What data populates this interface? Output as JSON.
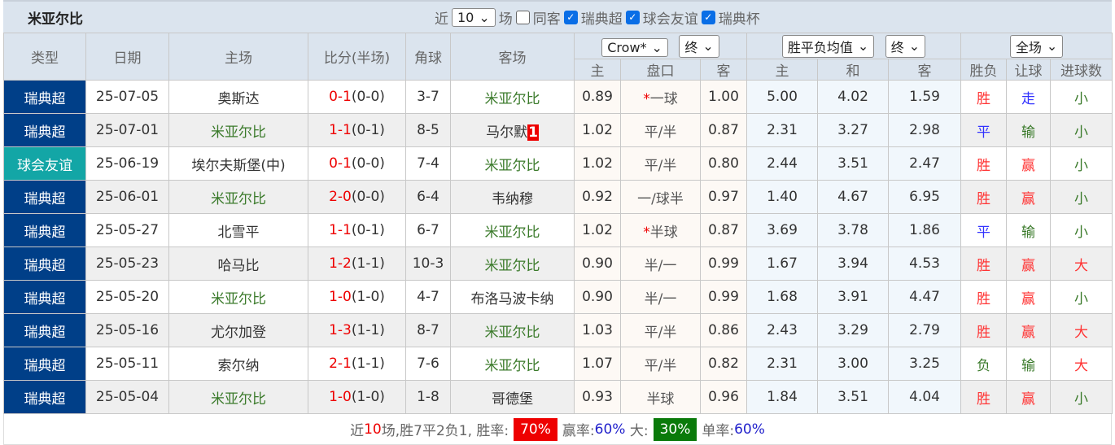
{
  "title": "米亚尔比",
  "filters": {
    "recent_label": "近",
    "count": "10",
    "unit": "场",
    "same_home_away": "同客",
    "leagues": [
      "瑞典超",
      "球会友谊",
      "瑞典杯"
    ]
  },
  "header": {
    "type": "类型",
    "date": "日期",
    "home": "主场",
    "score": "比分(半场)",
    "corner": "角球",
    "away": "客场",
    "ah_company": "Crow*",
    "ah_stage": "终",
    "eu_type": "胜平负均值",
    "eu_stage": "终",
    "scope": "全场",
    "ah_home": "主",
    "ah_line": "盘口",
    "ah_away": "客",
    "eu_home": "主",
    "eu_draw": "和",
    "eu_away": "客",
    "res": "胜负",
    "handicap": "让球",
    "goals": "进球数"
  },
  "rows": [
    {
      "type": "瑞典超",
      "date": "25-07-05",
      "home": "奥斯达",
      "ft": "0-1",
      "ht": "(0-0)",
      "corner": "3-7",
      "away": "米亚尔比",
      "away_badge": "",
      "ah_h": "0.89",
      "ah_star": "*",
      "ah_line": "一球",
      "ah_a": "1.00",
      "eu_h": "5.00",
      "eu_d": "4.02",
      "eu_a": "1.59",
      "res": "胜",
      "hc": "走",
      "goals": "小"
    },
    {
      "type": "瑞典超",
      "date": "25-07-01",
      "home": "米亚尔比",
      "ft": "1-1",
      "ht": "(0-1)",
      "corner": "8-5",
      "away": "马尔默",
      "away_badge": "1",
      "ah_h": "1.02",
      "ah_star": "",
      "ah_line": "平/半",
      "ah_a": "0.87",
      "eu_h": "2.31",
      "eu_d": "3.27",
      "eu_a": "2.98",
      "res": "平",
      "hc": "输",
      "goals": "小"
    },
    {
      "type": "球会友谊",
      "date": "25-06-19",
      "home": "埃尔夫斯堡(中)",
      "ft": "0-1",
      "ht": "(0-0)",
      "corner": "7-4",
      "away": "米亚尔比",
      "away_badge": "",
      "ah_h": "1.02",
      "ah_star": "",
      "ah_line": "平/半",
      "ah_a": "0.80",
      "eu_h": "2.44",
      "eu_d": "3.51",
      "eu_a": "2.47",
      "res": "胜",
      "hc": "赢",
      "goals": "小"
    },
    {
      "type": "瑞典超",
      "date": "25-06-01",
      "home": "米亚尔比",
      "ft": "2-0",
      "ht": "(0-0)",
      "corner": "6-4",
      "away": "韦纳穆",
      "away_badge": "",
      "ah_h": "0.92",
      "ah_star": "",
      "ah_line": "一/球半",
      "ah_a": "0.97",
      "eu_h": "1.40",
      "eu_d": "4.67",
      "eu_a": "6.95",
      "res": "胜",
      "hc": "赢",
      "goals": "小"
    },
    {
      "type": "瑞典超",
      "date": "25-05-27",
      "home": "北雪平",
      "ft": "1-1",
      "ht": "(0-1)",
      "corner": "6-7",
      "away": "米亚尔比",
      "away_badge": "",
      "ah_h": "1.02",
      "ah_star": "*",
      "ah_line": "半球",
      "ah_a": "0.87",
      "eu_h": "3.69",
      "eu_d": "3.78",
      "eu_a": "1.86",
      "res": "平",
      "hc": "输",
      "goals": "小"
    },
    {
      "type": "瑞典超",
      "date": "25-05-23",
      "home": "哈马比",
      "ft": "1-2",
      "ht": "(1-1)",
      "corner": "10-3",
      "away": "米亚尔比",
      "away_badge": "",
      "ah_h": "0.90",
      "ah_star": "",
      "ah_line": "半/一",
      "ah_a": "0.99",
      "eu_h": "1.67",
      "eu_d": "3.94",
      "eu_a": "4.53",
      "res": "胜",
      "hc": "赢",
      "goals": "大"
    },
    {
      "type": "瑞典超",
      "date": "25-05-20",
      "home": "米亚尔比",
      "ft": "1-0",
      "ht": "(1-0)",
      "corner": "4-7",
      "away": "布洛马波卡纳",
      "away_badge": "",
      "ah_h": "0.90",
      "ah_star": "",
      "ah_line": "半/一",
      "ah_a": "0.99",
      "eu_h": "1.68",
      "eu_d": "3.91",
      "eu_a": "4.47",
      "res": "胜",
      "hc": "赢",
      "goals": "小"
    },
    {
      "type": "瑞典超",
      "date": "25-05-16",
      "home": "尤尔加登",
      "ft": "1-3",
      "ht": "(1-1)",
      "corner": "8-7",
      "away": "米亚尔比",
      "away_badge": "",
      "ah_h": "1.03",
      "ah_star": "",
      "ah_line": "平/半",
      "ah_a": "0.86",
      "eu_h": "2.43",
      "eu_d": "3.29",
      "eu_a": "2.79",
      "res": "胜",
      "hc": "赢",
      "goals": "大"
    },
    {
      "type": "瑞典超",
      "date": "25-05-11",
      "home": "索尔纳",
      "ft": "2-1",
      "ht": "(1-1)",
      "corner": "7-6",
      "away": "米亚尔比",
      "away_badge": "",
      "ah_h": "1.07",
      "ah_star": "",
      "ah_line": "平/半",
      "ah_a": "0.82",
      "eu_h": "2.31",
      "eu_d": "3.00",
      "eu_a": "3.25",
      "res": "负",
      "hc": "输",
      "goals": "大"
    },
    {
      "type": "瑞典超",
      "date": "25-05-04",
      "home": "米亚尔比",
      "ft": "1-0",
      "ht": "(1-0)",
      "corner": "1-8",
      "away": "哥德堡",
      "away_badge": "",
      "ah_h": "0.93",
      "ah_star": "",
      "ah_line": "半球",
      "ah_a": "0.96",
      "eu_h": "1.84",
      "eu_d": "3.51",
      "eu_a": "4.04",
      "res": "胜",
      "hc": "赢",
      "goals": "小"
    }
  ],
  "footer": {
    "p1": "近",
    "n": "10",
    "p2": "场,胜7平2负1, 胜率:",
    "win_rate": "70%",
    "p3": "赢率:",
    "cover_rate": "60%",
    "p4": "大:",
    "over_rate": "30%",
    "p5": "单率:",
    "odd_rate": "60%"
  },
  "colors": {
    "league": "#003f88",
    "friendly": "#13a6a6",
    "win": "#ff3333",
    "draw": "#3333ff",
    "lose": "#3a7a2a"
  }
}
